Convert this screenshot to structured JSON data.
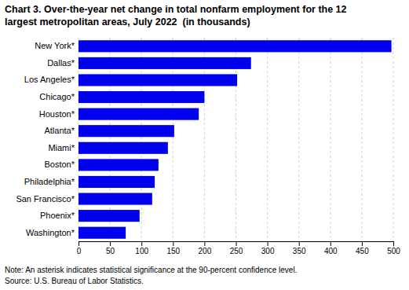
{
  "chart_data": {
    "type": "bar",
    "orientation": "horizontal",
    "title": "Chart 3. Over-the-year net change in total nonfarm employment for the 12",
    "subtitle": "largest metropolitan areas, July 2022  (in thousands)",
    "categories": [
      "Washington*",
      "Phoenix*",
      "San Francisco*",
      "Philadelphia*",
      "Boston*",
      "Miami*",
      "Atlanta*",
      "Houston*",
      "Chicago*",
      "Los Angeles*",
      "Dallas*",
      "New York*"
    ],
    "values": [
      75,
      97,
      117,
      121,
      127,
      142,
      152,
      191,
      200,
      252,
      274,
      497
    ],
    "color": "#0000EE",
    "xlim": [
      0,
      500
    ],
    "xticks": [
      0,
      50,
      100,
      150,
      200,
      250,
      300,
      350,
      400,
      450,
      500
    ],
    "grid": true,
    "annotations": [
      "Note: An asterisk indicates statistical significance at the 90-percent confidence level.",
      "Source: U.S. Bureau of Labor Statistics."
    ]
  }
}
